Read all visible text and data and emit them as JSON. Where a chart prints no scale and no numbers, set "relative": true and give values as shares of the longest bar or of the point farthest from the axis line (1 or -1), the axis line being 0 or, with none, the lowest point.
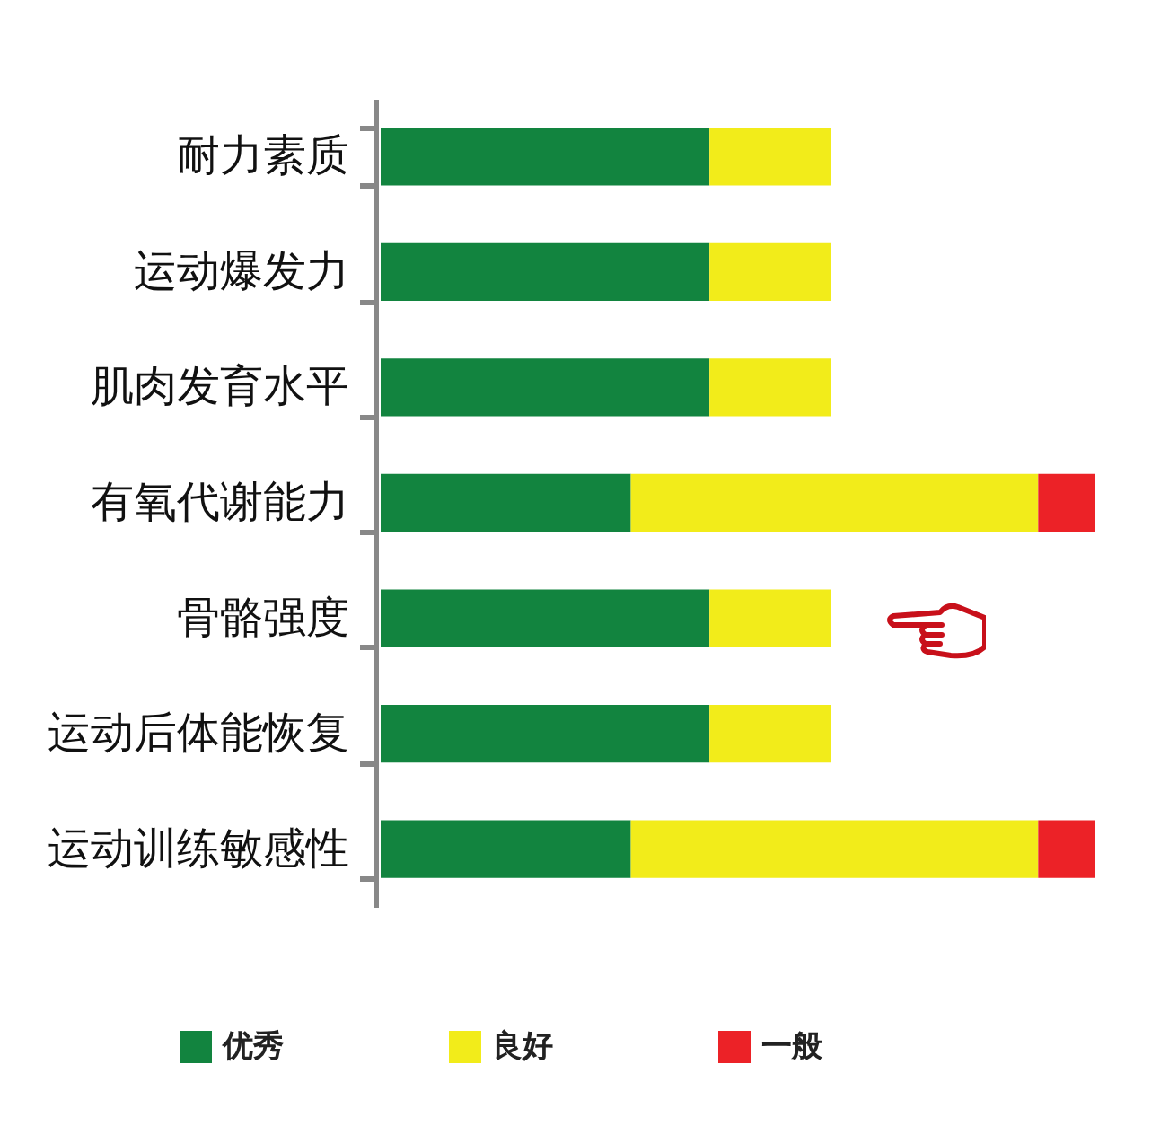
{
  "chart_data": {
    "type": "bar",
    "orientation": "horizontal",
    "stacked": true,
    "relative": true,
    "categories": [
      "耐力素质",
      "运动爆发力",
      "肌肉发育水平",
      "有氧代谢能力",
      "骨骼强度",
      "运动后体能恢复",
      "运动训练敏感性"
    ],
    "series": [
      {
        "name": "优秀",
        "color": "#12843f",
        "values": [
          0.46,
          0.46,
          0.46,
          0.35,
          0.46,
          0.46,
          0.35
        ]
      },
      {
        "name": "良好",
        "color": "#f2ec1a",
        "values": [
          0.17,
          0.17,
          0.17,
          0.57,
          0.17,
          0.17,
          0.57
        ]
      },
      {
        "name": "一般",
        "color": "#ec2227",
        "values": [
          0,
          0,
          0,
          0.08,
          0,
          0,
          0.08
        ]
      }
    ],
    "legend": "bottom"
  }
}
